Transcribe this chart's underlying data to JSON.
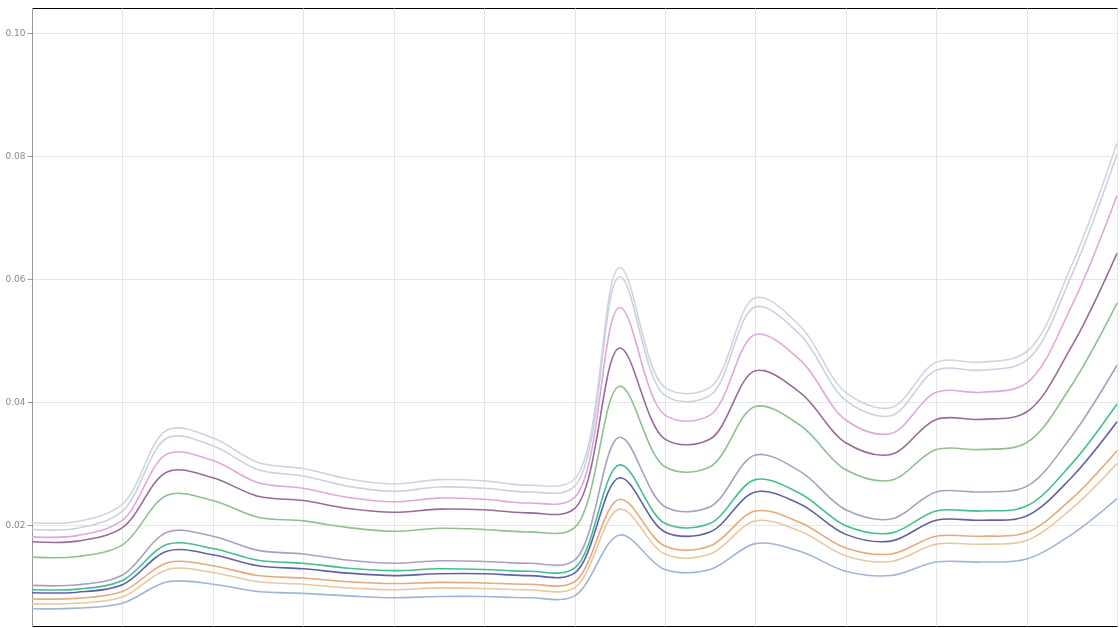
{
  "chart_data": {
    "type": "line",
    "categories": [
      null,
      null,
      null,
      null,
      null,
      null,
      null,
      null,
      null,
      null,
      null,
      null,
      null,
      null,
      null,
      null,
      null,
      null,
      null,
      null,
      null,
      null,
      null,
      null,
      null
    ],
    "ylim": [
      0.0035,
      0.104
    ],
    "yticks": [
      0.02,
      0.04,
      0.06,
      0.08,
      {
        "value": 0.1,
        "label": "0.10"
      }
    ],
    "grid": true,
    "legend": false,
    "tick_labels": "y",
    "marker": "none",
    "line_style": "solid",
    "series": [
      {
        "color": "#d0d4dc",
        "values": [
          0.0203,
          0.0205,
          0.0233,
          0.0354,
          0.0341,
          0.0301,
          0.0291,
          0.0274,
          0.0266,
          0.0273,
          0.0271,
          0.0264,
          0.0274,
          0.0618,
          0.0423,
          0.0423,
          0.0569,
          0.0522,
          0.0415,
          0.039,
          0.0464,
          0.0464,
          0.0481,
          0.0622,
          0.082
        ]
      },
      {
        "color": "#c8d2e0",
        "values": [
          0.0192,
          0.0194,
          0.0222,
          0.0341,
          0.0328,
          0.0289,
          0.0279,
          0.0262,
          0.0254,
          0.0261,
          0.0259,
          0.0253,
          0.0262,
          0.0603,
          0.041,
          0.041,
          0.0554,
          0.0508,
          0.0402,
          0.0377,
          0.0451,
          0.0451,
          0.0467,
          0.0606,
          0.0802
        ]
      },
      {
        "color": "#e0a8d8",
        "values": [
          0.018,
          0.0182,
          0.0207,
          0.0315,
          0.0304,
          0.0268,
          0.0259,
          0.0244,
          0.0237,
          0.0243,
          0.0241,
          0.0235,
          0.0244,
          0.0553,
          0.0378,
          0.0378,
          0.0509,
          0.0467,
          0.037,
          0.0348,
          0.0415,
          0.0415,
          0.043,
          0.0556,
          0.0735
        ]
      },
      {
        "color": "#9a6a9a",
        "values": [
          0.0172,
          0.0173,
          0.0195,
          0.0286,
          0.0276,
          0.0246,
          0.0239,
          0.0226,
          0.022,
          0.0225,
          0.0224,
          0.0219,
          0.0226,
          0.0487,
          0.0339,
          0.0339,
          0.045,
          0.0414,
          0.0333,
          0.0314,
          0.0371,
          0.0371,
          0.0383,
          0.049,
          0.0641
        ]
      },
      {
        "color": "#90c090",
        "values": [
          0.0147,
          0.0148,
          0.0167,
          0.0248,
          0.0239,
          0.0212,
          0.0206,
          0.0195,
          0.0189,
          0.0194,
          0.0192,
          0.0188,
          0.0195,
          0.0425,
          0.0294,
          0.0294,
          0.0392,
          0.0361,
          0.0289,
          0.0272,
          0.0322,
          0.0322,
          0.0333,
          0.0427,
          0.056
        ]
      },
      {
        "color": "#a8a0c0",
        "values": [
          0.0101,
          0.0102,
          0.0118,
          0.0188,
          0.0181,
          0.0158,
          0.0152,
          0.0142,
          0.0137,
          0.0141,
          0.014,
          0.0137,
          0.0142,
          0.0342,
          0.0229,
          0.0229,
          0.0313,
          0.0286,
          0.0224,
          0.0209,
          0.0253,
          0.0253,
          0.0262,
          0.0344,
          0.0459
        ]
      },
      {
        "color": "#40c090",
        "values": [
          0.0094,
          0.0095,
          0.0109,
          0.0168,
          0.0161,
          0.0142,
          0.0137,
          0.0129,
          0.0125,
          0.0128,
          0.0127,
          0.0124,
          0.0129,
          0.0297,
          0.0202,
          0.0202,
          0.0273,
          0.025,
          0.0198,
          0.0186,
          0.0222,
          0.0222,
          0.023,
          0.0299,
          0.0396
        ]
      },
      {
        "color": "#6060a8",
        "values": [
          0.0089,
          0.009,
          0.0102,
          0.0157,
          0.0151,
          0.0133,
          0.0128,
          0.0121,
          0.0117,
          0.012,
          0.012,
          0.0117,
          0.0121,
          0.0276,
          0.0188,
          0.0188,
          0.0253,
          0.0233,
          0.0184,
          0.0173,
          0.0207,
          0.0207,
          0.0214,
          0.0277,
          0.0367
        ]
      },
      {
        "color": "#e8a878",
        "values": [
          0.0079,
          0.008,
          0.0091,
          0.0138,
          0.0133,
          0.0117,
          0.0113,
          0.0107,
          0.0104,
          0.0106,
          0.0105,
          0.0103,
          0.0107,
          0.0241,
          0.0165,
          0.0165,
          0.0222,
          0.0203,
          0.0162,
          0.0152,
          0.0181,
          0.0181,
          0.0187,
          0.0242,
          0.032
        ]
      },
      {
        "color": "#e8c8a0",
        "values": [
          0.0071,
          0.0072,
          0.0082,
          0.0127,
          0.0122,
          0.0107,
          0.0103,
          0.0097,
          0.0094,
          0.0097,
          0.0096,
          0.0094,
          0.0097,
          0.0225,
          0.0152,
          0.0152,
          0.0206,
          0.0189,
          0.0149,
          0.014,
          0.0168,
          0.0168,
          0.0174,
          0.0226,
          0.0299
        ]
      },
      {
        "color": "#a0b4d8",
        "values": [
          0.0063,
          0.0064,
          0.0072,
          0.0107,
          0.0103,
          0.0091,
          0.0088,
          0.0084,
          0.0081,
          0.0083,
          0.0083,
          0.0081,
          0.0084,
          0.0183,
          0.0127,
          0.0127,
          0.0169,
          0.0156,
          0.0124,
          0.0117,
          0.0139,
          0.0139,
          0.0144,
          0.0184,
          0.0242
        ]
      }
    ]
  }
}
